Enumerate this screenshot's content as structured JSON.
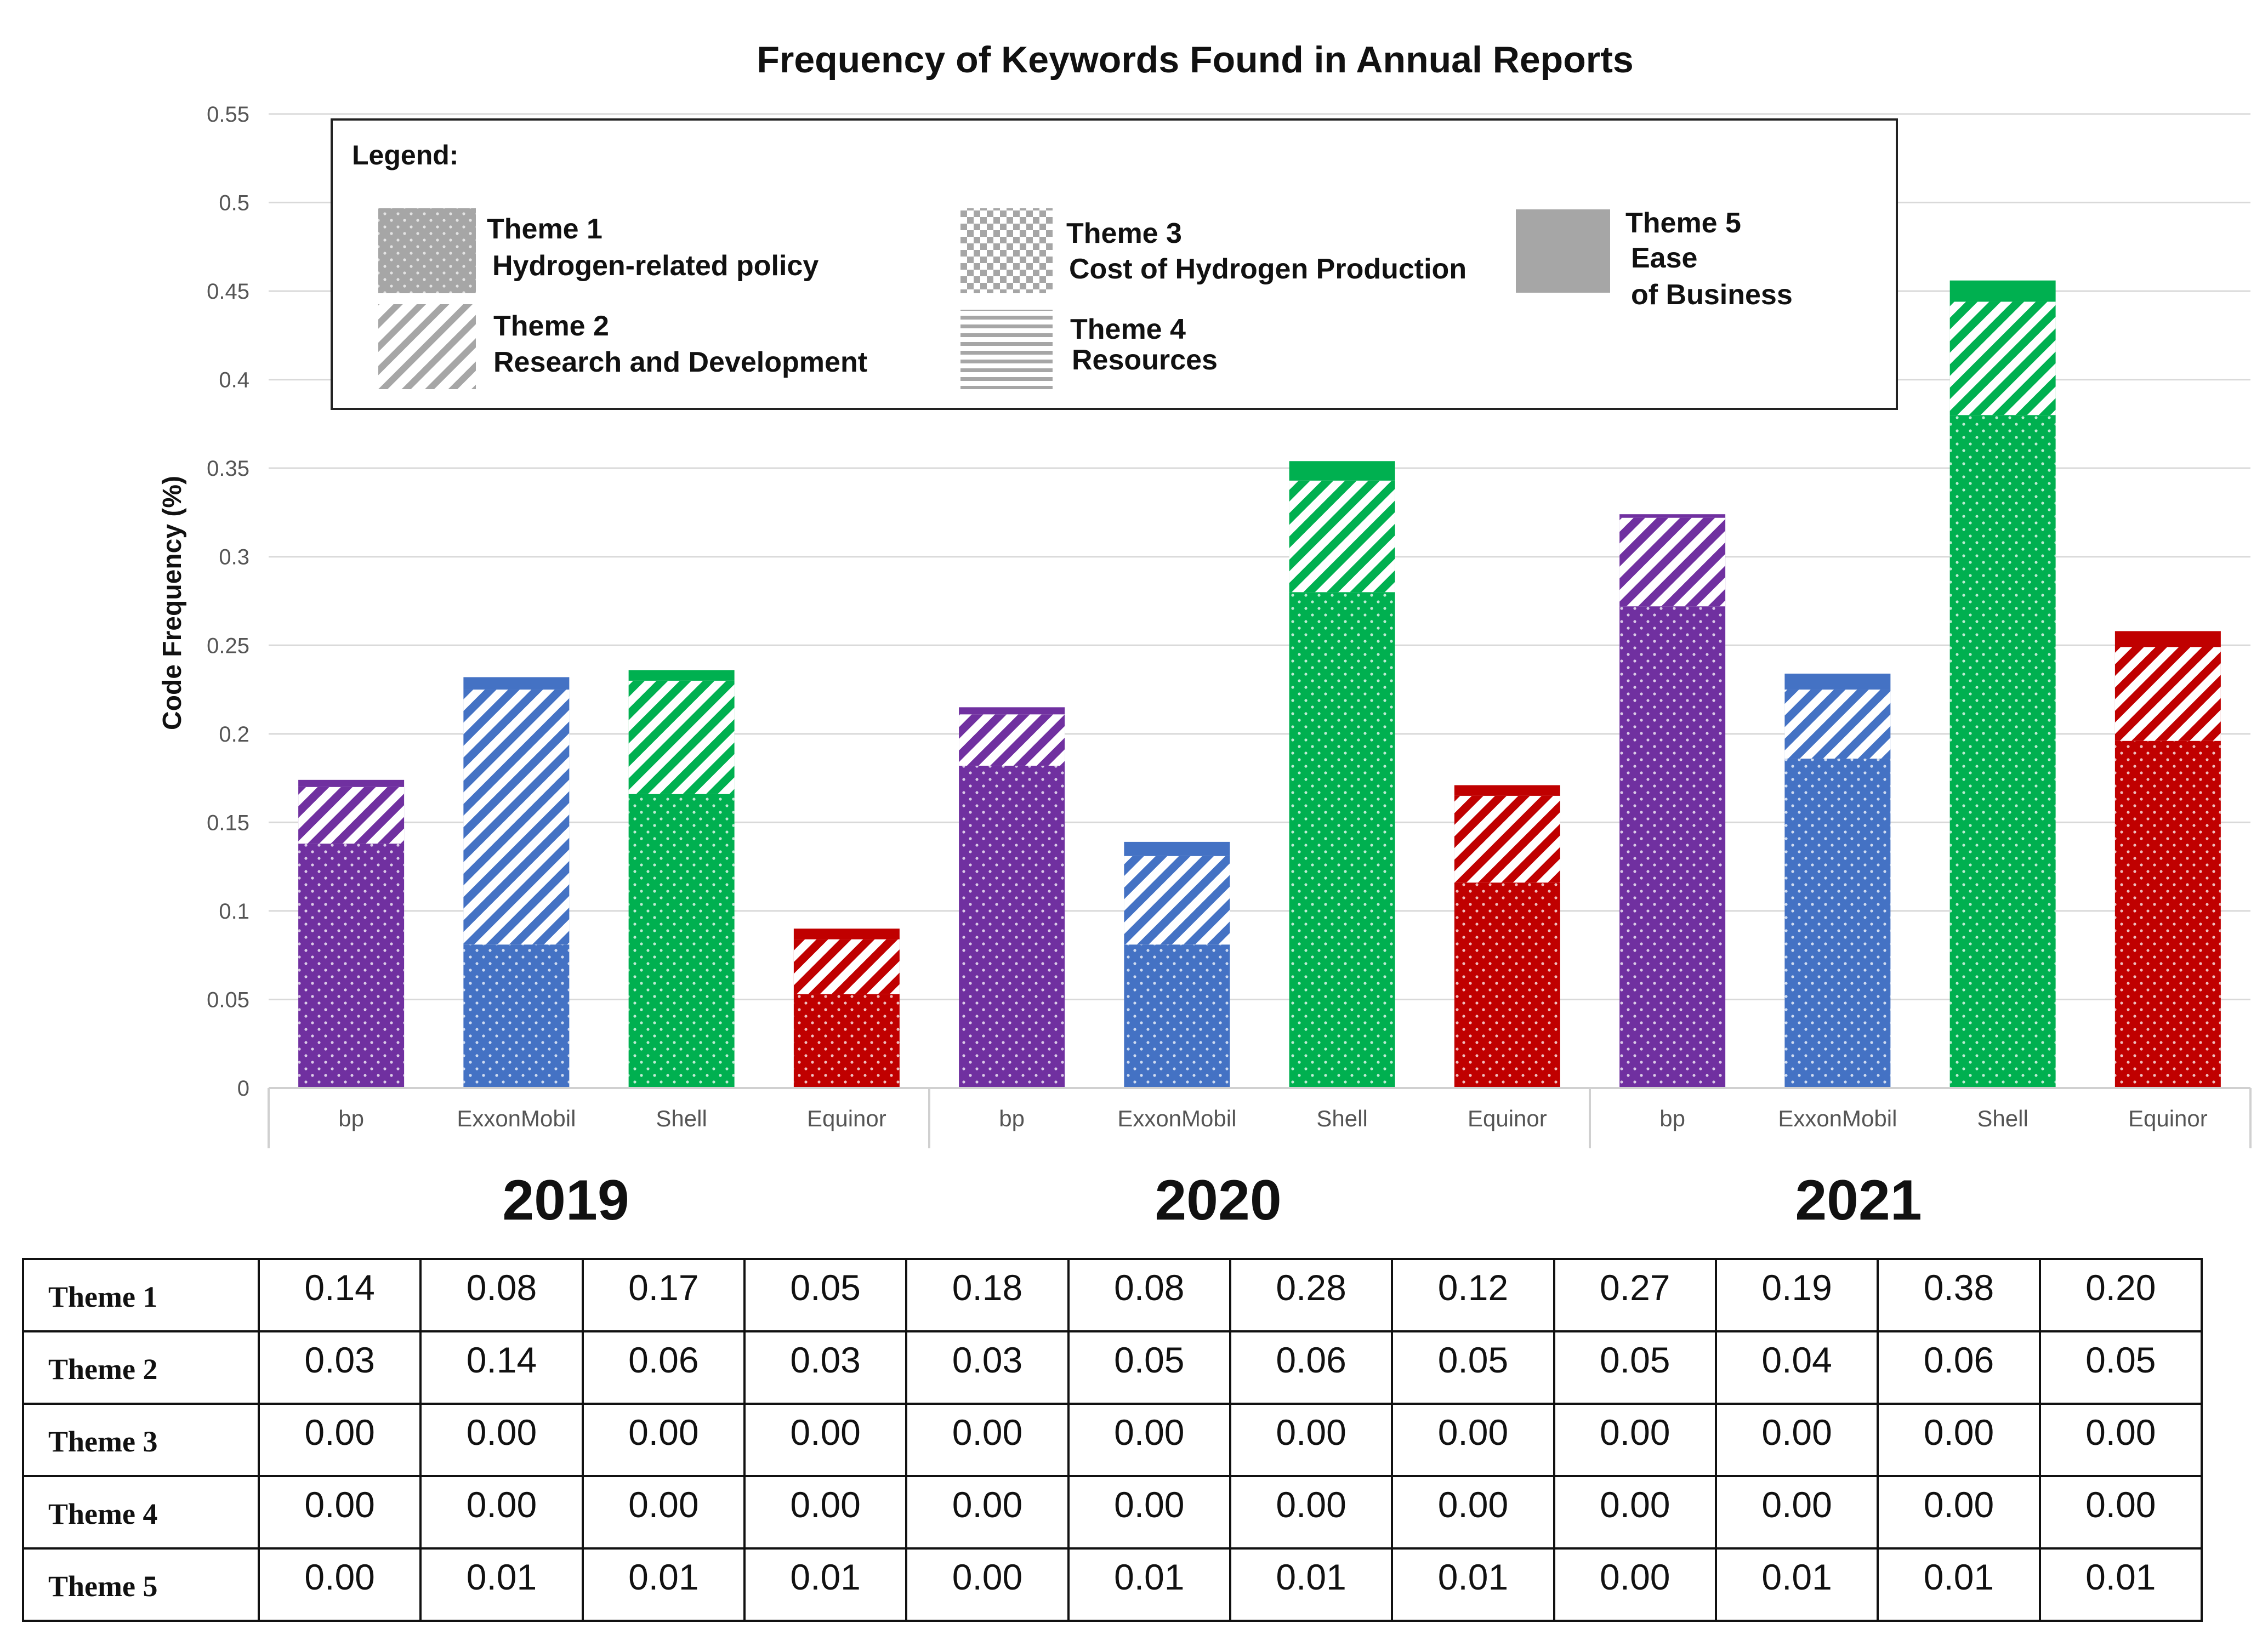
{
  "chart_data": {
    "type": "bar",
    "stacked": true,
    "title": "Frequency of Keywords Found in Annual Reports",
    "ylabel": "Code Frequency (%)",
    "xlabel": "",
    "ylim": [
      0,
      0.55
    ],
    "yticks": [
      "0",
      "0.05",
      "0.1",
      "0.15",
      "0.2",
      "0.25",
      "0.3",
      "0.35",
      "0.4",
      "0.45",
      "0.5",
      "0.55"
    ],
    "grid": true,
    "legend_position": "top",
    "groups": [
      "2019",
      "2020",
      "2021"
    ],
    "companies": [
      "bp",
      "ExxonMobil",
      "Shell",
      "Equinor"
    ],
    "categories": [
      "bp",
      "ExxonMobil",
      "Shell",
      "Equinor",
      "bp",
      "ExxonMobil",
      "Shell",
      "Equinor",
      "bp",
      "ExxonMobil",
      "Shell",
      "Equinor"
    ],
    "company_colors": {
      "bp": "#7030a0",
      "ExxonMobil": "#4472c4",
      "Shell": "#00b050",
      "Equinor": "#c00000"
    },
    "series": [
      {
        "name": "Theme 1",
        "values": [
          0.138,
          0.081,
          0.166,
          0.053,
          0.182,
          0.081,
          0.28,
          0.116,
          0.272,
          0.186,
          0.38,
          0.196
        ]
      },
      {
        "name": "Theme 2",
        "values": [
          0.032,
          0.144,
          0.064,
          0.031,
          0.029,
          0.05,
          0.063,
          0.049,
          0.05,
          0.039,
          0.064,
          0.053
        ]
      },
      {
        "name": "Theme 3",
        "values": [
          0,
          0,
          0,
          0,
          0,
          0,
          0,
          0,
          0,
          0,
          0,
          0
        ]
      },
      {
        "name": "Theme 4",
        "values": [
          0,
          0,
          0,
          0,
          0,
          0,
          0,
          0,
          0,
          0,
          0,
          0
        ]
      },
      {
        "name": "Theme 5",
        "values": [
          0.004,
          0.007,
          0.006,
          0.006,
          0.004,
          0.008,
          0.011,
          0.006,
          0.002,
          0.009,
          0.012,
          0.009
        ]
      }
    ],
    "legend": {
      "title": "Legend:",
      "items": [
        {
          "line1": "Theme 1",
          "line2": "Hydrogen-related policy",
          "pattern": "dots"
        },
        {
          "line1": "Theme 2",
          "line2": "Research and Development",
          "pattern": "diagonal"
        },
        {
          "line1": "Theme 3",
          "line2": "Cost of Hydrogen Production",
          "pattern": "checker"
        },
        {
          "line1": "Theme 4",
          "line2": "Resources",
          "pattern": "horizontal"
        },
        {
          "line1": "Theme 5",
          "line2": "Ease",
          "line3": "of Business",
          "pattern": "solid"
        }
      ]
    }
  },
  "table": {
    "rows": [
      {
        "label": "Theme 1",
        "values": [
          "0.14",
          "0.08",
          "0.17",
          "0.05",
          "0.18",
          "0.08",
          "0.28",
          "0.12",
          "0.27",
          "0.19",
          "0.38",
          "0.20"
        ]
      },
      {
        "label": "Theme 2",
        "values": [
          "0.03",
          "0.14",
          "0.06",
          "0.03",
          "0.03",
          "0.05",
          "0.06",
          "0.05",
          "0.05",
          "0.04",
          "0.06",
          "0.05"
        ]
      },
      {
        "label": "Theme 3",
        "values": [
          "0.00",
          "0.00",
          "0.00",
          "0.00",
          "0.00",
          "0.00",
          "0.00",
          "0.00",
          "0.00",
          "0.00",
          "0.00",
          "0.00"
        ]
      },
      {
        "label": "Theme 4",
        "values": [
          "0.00",
          "0.00",
          "0.00",
          "0.00",
          "0.00",
          "0.00",
          "0.00",
          "0.00",
          "0.00",
          "0.00",
          "0.00",
          "0.00"
        ]
      },
      {
        "label": "Theme 5",
        "values": [
          "0.00",
          "0.01",
          "0.01",
          "0.01",
          "0.00",
          "0.01",
          "0.01",
          "0.01",
          "0.00",
          "0.01",
          "0.01",
          "0.01"
        ]
      }
    ]
  }
}
